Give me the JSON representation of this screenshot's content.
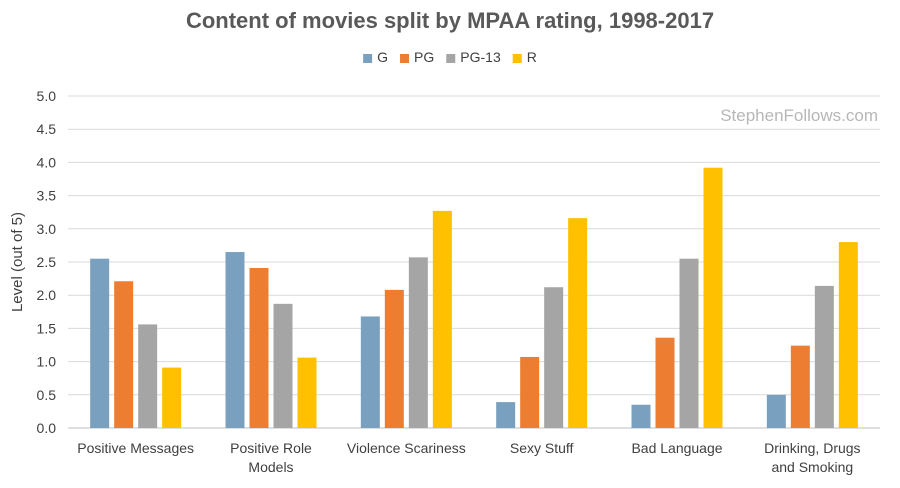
{
  "chart_data": {
    "type": "bar",
    "title": "Content of movies split by MPAA rating, 1998-2017",
    "ylabel": "Level (out of 5)",
    "xlabel": "",
    "ylim": [
      0,
      5
    ],
    "ytick_step": 0.5,
    "yticks": [
      "0.0",
      "0.5",
      "1.0",
      "1.5",
      "2.0",
      "2.5",
      "3.0",
      "3.5",
      "4.0",
      "4.5",
      "5.0"
    ],
    "grid": true,
    "legend_position": "top",
    "watermark": "StephenFollows.com",
    "categories": [
      [
        "Positive Messages"
      ],
      [
        "Positive Role",
        "Models"
      ],
      [
        "Violence Scariness"
      ],
      [
        "Sexy Stuff"
      ],
      [
        "Bad Language"
      ],
      [
        "Drinking, Drugs",
        "and Smoking"
      ]
    ],
    "series": [
      {
        "name": "G",
        "color": "#7aa0c0",
        "values": [
          2.55,
          2.65,
          1.68,
          0.39,
          0.35,
          0.5
        ]
      },
      {
        "name": "PG",
        "color": "#ed7d31",
        "values": [
          2.21,
          2.41,
          2.08,
          1.07,
          1.36,
          1.24
        ]
      },
      {
        "name": "PG-13",
        "color": "#a5a5a5",
        "values": [
          1.56,
          1.87,
          2.57,
          2.12,
          2.55,
          2.14
        ]
      },
      {
        "name": "R",
        "color": "#ffc000",
        "values": [
          0.91,
          1.06,
          3.27,
          3.16,
          3.92,
          2.8
        ]
      }
    ]
  }
}
